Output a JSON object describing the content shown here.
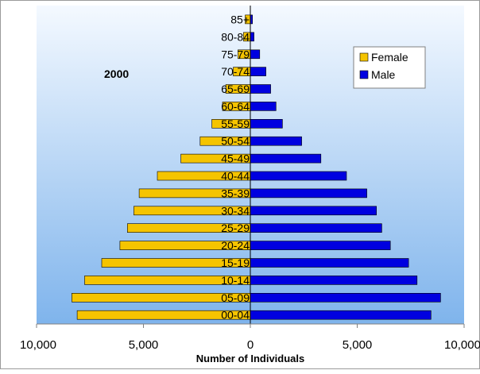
{
  "chart_data": {
    "type": "bar",
    "orientation": "horizontal",
    "subtype": "population-pyramid",
    "title": "",
    "annotation": "2000",
    "xlabel": "Number of Individuals",
    "ylabel": "",
    "xlim": [
      -10000,
      10000
    ],
    "x_ticks": [
      "10,000",
      "5,000",
      "0",
      "5,000",
      "10,000"
    ],
    "grid": false,
    "legend_position": "top-right",
    "categories": [
      "00-04",
      "05-09",
      "10-14",
      "15-19",
      "20-24",
      "25-29",
      "30-34",
      "35-39",
      "40-44",
      "45-49",
      "50-54",
      "55-59",
      "60-64",
      "65-69",
      "70-74",
      "75-79",
      "80-84",
      "85+"
    ],
    "series": [
      {
        "name": "Female",
        "color": "#f5c400",
        "values": [
          8100,
          8350,
          7750,
          6950,
          6100,
          5750,
          5450,
          5200,
          4350,
          3250,
          2350,
          1800,
          1300,
          1150,
          800,
          580,
          320,
          240
        ]
      },
      {
        "name": "Male",
        "color": "#0000e0",
        "values": [
          8450,
          8900,
          7800,
          7400,
          6550,
          6150,
          5900,
          5450,
          4500,
          3300,
          2400,
          1500,
          1200,
          950,
          730,
          440,
          170,
          100
        ]
      }
    ],
    "background_gradient": [
      "#f4f9ff",
      "#7fb4ec"
    ]
  }
}
